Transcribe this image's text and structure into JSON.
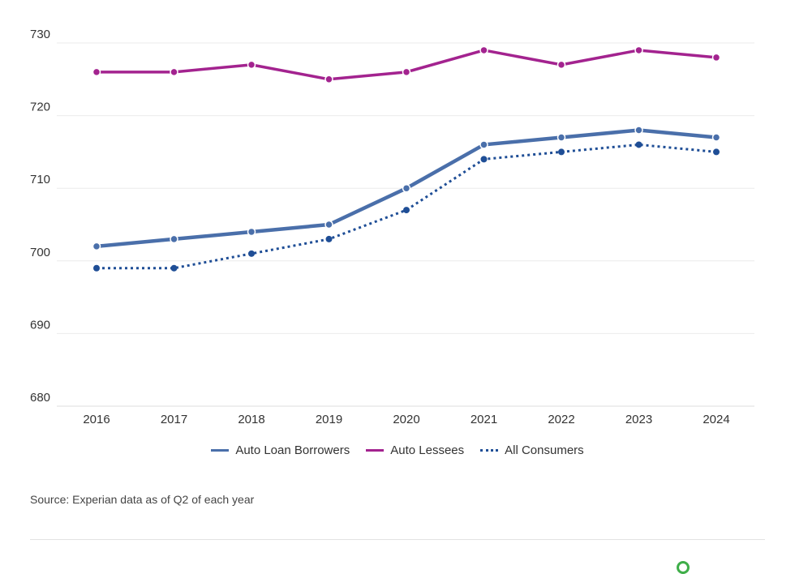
{
  "chart_data": {
    "type": "line",
    "title": "",
    "xlabel": "",
    "ylabel": "",
    "categories": [
      "2016",
      "2017",
      "2018",
      "2019",
      "2020",
      "2021",
      "2022",
      "2023",
      "2024"
    ],
    "ylim": [
      680,
      730
    ],
    "yticks": [
      "680",
      "690",
      "700",
      "710",
      "720",
      "730"
    ],
    "grid": true,
    "legend_position": "bottom",
    "series": [
      {
        "name": "Auto Loan Borrowers",
        "values": [
          702,
          703,
          704,
          705,
          710,
          716,
          717,
          718,
          717
        ],
        "color": "#4a6faa",
        "style": "solid"
      },
      {
        "name": "Auto Lessees",
        "values": [
          726,
          726,
          727,
          725,
          726,
          729,
          727,
          729,
          728
        ],
        "color": "#a3238f",
        "style": "solid"
      },
      {
        "name": "All Consumers",
        "values": [
          699,
          699,
          701,
          703,
          707,
          714,
          715,
          716,
          715
        ],
        "color": "#1f4e96",
        "style": "dotted"
      }
    ]
  },
  "legend": {
    "items": [
      "Auto Loan Borrowers",
      "Auto Lessees",
      "All Consumers"
    ]
  },
  "footer": {
    "source": "Source: Experian data as of Q2 of each year"
  }
}
